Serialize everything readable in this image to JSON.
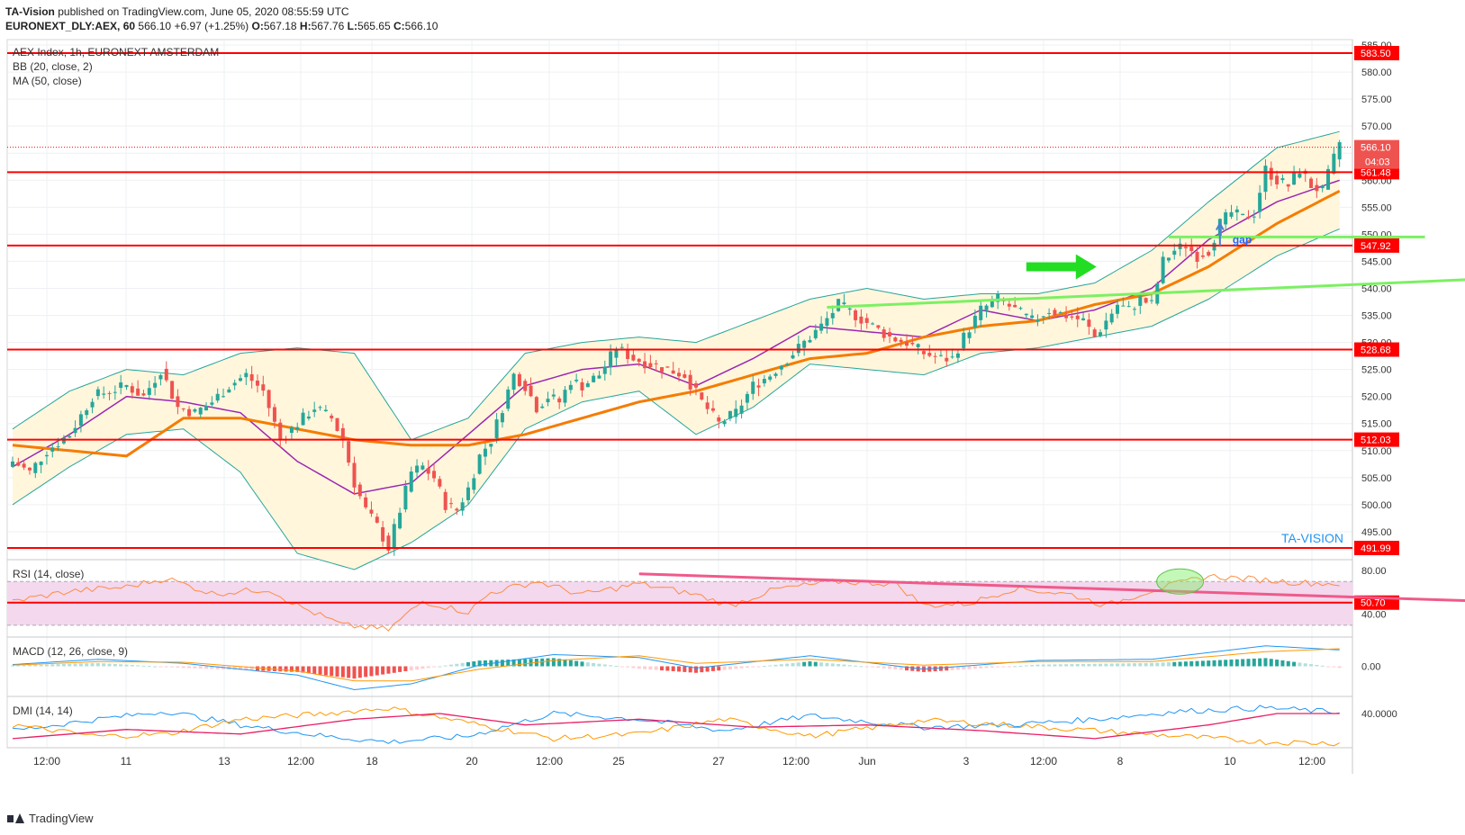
{
  "header": {
    "author": "TA-Vision",
    "published": "published on TradingView.com, June 05, 2020 08:55:59 UTC",
    "symbol": "EURONEXT_DLY:AEX, 60",
    "last": "566.10",
    "change": "+6.97 (+1.25%)",
    "ohlc": {
      "o_label": "O:",
      "o": "567.18",
      "h_label": "H:",
      "h": "567.76",
      "l_label": "L:",
      "l": "565.65",
      "c_label": "C:",
      "c": "566.10"
    }
  },
  "legend": {
    "title": "AEX Index, 1h, EURONEXT AMSTERDAM",
    "bb": "BB (20, close, 2)",
    "ma": "MA (50, close)"
  },
  "watermark": "TA-VISION",
  "annotations": {
    "gap": "gap"
  },
  "footer": {
    "brand": "TradingView"
  },
  "colors": {
    "up": "#26a69a",
    "down": "#ef5350",
    "resistance": "#ff0000",
    "trend": "#7cf062",
    "ma": "#f57c00",
    "bb_mid": "#9c27b0",
    "bb_band": "#26a69a",
    "bb_fill": "#fff6dc",
    "rsi": "#ff8c42",
    "rsi_band": "#f3d8ee",
    "rsi_trend": "#ef5a8a",
    "macd": "#2196f3",
    "signal": "#ff9800",
    "dmi_plus": "#2196f3",
    "dmi_minus": "#ff9800",
    "adx": "#e91e63",
    "watermark": "#2196f3"
  },
  "chart_data": [
    {
      "type": "candlestick",
      "title": "AEX Index, 1h, EURONEXT AMSTERDAM",
      "ylim": [
        490,
        586
      ],
      "y_ticks": [
        495,
        500,
        505,
        510,
        515,
        520,
        525,
        530,
        535,
        540,
        545,
        550,
        555,
        560,
        565,
        570,
        575,
        580,
        585
      ],
      "x_ticks": [
        "12:00",
        "11",
        "13",
        "12:00",
        "18",
        "20",
        "12:00",
        "25",
        "27",
        "12:00",
        "Jun",
        "3",
        "12:00",
        "8",
        "10",
        "12:00"
      ],
      "horizontal_levels": [
        583.5,
        561.48,
        547.92,
        528.68,
        512.03,
        491.99
      ],
      "last_price": 566.1,
      "countdown": "04:03",
      "close_anchors": [
        [
          0,
          508
        ],
        [
          3,
          506
        ],
        [
          6,
          510
        ],
        [
          10,
          513
        ],
        [
          14,
          520
        ],
        [
          17,
          521
        ],
        [
          20,
          522
        ],
        [
          23,
          520
        ],
        [
          26,
          525
        ],
        [
          29,
          518
        ],
        [
          32,
          517
        ],
        [
          35,
          519
        ],
        [
          38,
          522
        ],
        [
          41,
          524
        ],
        [
          44,
          521
        ],
        [
          47,
          512
        ],
        [
          50,
          515
        ],
        [
          53,
          518
        ],
        [
          56,
          516
        ],
        [
          58,
          512
        ],
        [
          60,
          504
        ],
        [
          62,
          499
        ],
        [
          64,
          496
        ],
        [
          66,
          492
        ],
        [
          68,
          499
        ],
        [
          70,
          506
        ],
        [
          72,
          507
        ],
        [
          74,
          505
        ],
        [
          76,
          500
        ],
        [
          78,
          499
        ],
        [
          80,
          503
        ],
        [
          82,
          509
        ],
        [
          84,
          512
        ],
        [
          86,
          518
        ],
        [
          88,
          524
        ],
        [
          90,
          522
        ],
        [
          92,
          518
        ],
        [
          94,
          520
        ],
        [
          96,
          519
        ],
        [
          98,
          523
        ],
        [
          100,
          522
        ],
        [
          103,
          524
        ],
        [
          106,
          529
        ],
        [
          109,
          527
        ],
        [
          112,
          526
        ],
        [
          115,
          525
        ],
        [
          118,
          524
        ],
        [
          121,
          519
        ],
        [
          124,
          515
        ],
        [
          127,
          517
        ],
        [
          130,
          522
        ],
        [
          133,
          524
        ],
        [
          136,
          527
        ],
        [
          139,
          530
        ],
        [
          142,
          533
        ],
        [
          145,
          537
        ],
        [
          148,
          535
        ],
        [
          151,
          533
        ],
        [
          154,
          531
        ],
        [
          157,
          530
        ],
        [
          160,
          528
        ],
        [
          163,
          527
        ],
        [
          165,
          527
        ],
        [
          167,
          531
        ],
        [
          170,
          536
        ],
        [
          173,
          538
        ],
        [
          176,
          536
        ],
        [
          179,
          534
        ],
        [
          182,
          536
        ],
        [
          185,
          535
        ],
        [
          188,
          534
        ],
        [
          190,
          531
        ],
        [
          192,
          534
        ],
        [
          194,
          537
        ],
        [
          196,
          536
        ],
        [
          198,
          538
        ],
        [
          200,
          537
        ],
        [
          202,
          545
        ],
        [
          204,
          547
        ],
        [
          206,
          548
        ],
        [
          208,
          546
        ],
        [
          210,
          547
        ],
        [
          212,
          552
        ],
        [
          214,
          554
        ],
        [
          216,
          553
        ],
        [
          218,
          554
        ],
        [
          220,
          562
        ],
        [
          222,
          560
        ],
        [
          224,
          559
        ],
        [
          226,
          562
        ],
        [
          228,
          559
        ],
        [
          230,
          558
        ],
        [
          233,
          567
        ]
      ],
      "ma50_anchors": [
        [
          0,
          511
        ],
        [
          10,
          510
        ],
        [
          20,
          509
        ],
        [
          30,
          516
        ],
        [
          40,
          516
        ],
        [
          50,
          514
        ],
        [
          60,
          512
        ],
        [
          70,
          511
        ],
        [
          80,
          511
        ],
        [
          90,
          513
        ],
        [
          100,
          516
        ],
        [
          110,
          519
        ],
        [
          120,
          521
        ],
        [
          130,
          524
        ],
        [
          140,
          527
        ],
        [
          150,
          528
        ],
        [
          160,
          531
        ],
        [
          170,
          533
        ],
        [
          180,
          534
        ],
        [
          190,
          537
        ],
        [
          200,
          539
        ],
        [
          210,
          544
        ],
        [
          222,
          552
        ],
        [
          233,
          558
        ]
      ],
      "bb_mid_anchors": [
        [
          0,
          507
        ],
        [
          10,
          513
        ],
        [
          20,
          520
        ],
        [
          30,
          519
        ],
        [
          40,
          517
        ],
        [
          50,
          508
        ],
        [
          60,
          502
        ],
        [
          70,
          504
        ],
        [
          80,
          513
        ],
        [
          90,
          522
        ],
        [
          100,
          525
        ],
        [
          110,
          526
        ],
        [
          120,
          522
        ],
        [
          130,
          527
        ],
        [
          140,
          533
        ],
        [
          150,
          532
        ],
        [
          160,
          531
        ],
        [
          170,
          536
        ],
        [
          180,
          534
        ],
        [
          190,
          536
        ],
        [
          200,
          540
        ],
        [
          210,
          549
        ],
        [
          222,
          556
        ],
        [
          233,
          560
        ]
      ],
      "bb_upper_anchors": [
        [
          0,
          514
        ],
        [
          10,
          521
        ],
        [
          20,
          525
        ],
        [
          30,
          524
        ],
        [
          40,
          528
        ],
        [
          50,
          529
        ],
        [
          60,
          528
        ],
        [
          70,
          512
        ],
        [
          80,
          516
        ],
        [
          90,
          528
        ],
        [
          100,
          530
        ],
        [
          110,
          531
        ],
        [
          120,
          530
        ],
        [
          130,
          534
        ],
        [
          140,
          538
        ],
        [
          150,
          540
        ],
        [
          160,
          538
        ],
        [
          170,
          539
        ],
        [
          180,
          539
        ],
        [
          190,
          541
        ],
        [
          200,
          547
        ],
        [
          210,
          556
        ],
        [
          222,
          566
        ],
        [
          233,
          569
        ]
      ],
      "bb_lower_anchors": [
        [
          0,
          500
        ],
        [
          10,
          507
        ],
        [
          20,
          513
        ],
        [
          30,
          514
        ],
        [
          40,
          506
        ],
        [
          50,
          491
        ],
        [
          60,
          488
        ],
        [
          70,
          493
        ],
        [
          80,
          500
        ],
        [
          90,
          514
        ],
        [
          100,
          519
        ],
        [
          110,
          521
        ],
        [
          120,
          513
        ],
        [
          130,
          518
        ],
        [
          140,
          526
        ],
        [
          150,
          525
        ],
        [
          160,
          524
        ],
        [
          170,
          528
        ],
        [
          180,
          529
        ],
        [
          190,
          531
        ],
        [
          200,
          533
        ],
        [
          210,
          538
        ],
        [
          222,
          546
        ],
        [
          233,
          551
        ]
      ],
      "trendlines": [
        {
          "from": [
            143,
            536.5
          ],
          "to": [
            275,
            542.5
          ]
        },
        {
          "from": [
            203,
            549.5
          ],
          "to": [
            248,
            549.5
          ]
        },
        {
          "from": [
            0,
            512.03
          ],
          "to": [
            290,
            512.03
          ]
        }
      ]
    },
    {
      "type": "line",
      "title": "RSI (14, close)",
      "ylim": [
        20,
        90
      ],
      "y_ticks": [
        40,
        80
      ],
      "band": [
        30,
        70
      ],
      "level": 50.7,
      "anchors": [
        [
          0,
          52
        ],
        [
          10,
          61
        ],
        [
          20,
          65
        ],
        [
          27,
          73
        ],
        [
          35,
          59
        ],
        [
          45,
          63
        ],
        [
          50,
          48
        ],
        [
          58,
          30
        ],
        [
          66,
          26
        ],
        [
          72,
          52
        ],
        [
          80,
          42
        ],
        [
          84,
          60
        ],
        [
          92,
          70
        ],
        [
          100,
          58
        ],
        [
          110,
          68
        ],
        [
          120,
          58
        ],
        [
          126,
          48
        ],
        [
          134,
          63
        ],
        [
          145,
          70
        ],
        [
          155,
          68
        ],
        [
          160,
          48
        ],
        [
          168,
          50
        ],
        [
          176,
          64
        ],
        [
          186,
          58
        ],
        [
          192,
          48
        ],
        [
          200,
          62
        ],
        [
          210,
          75
        ],
        [
          218,
          72
        ],
        [
          226,
          69
        ],
        [
          233,
          68
        ]
      ],
      "trendline": {
        "from": [
          110,
          77
        ],
        "to": [
          258,
          52
        ]
      }
    },
    {
      "type": "line",
      "title": "MACD (12, 26, close, 9)",
      "ylim": [
        -5,
        5
      ],
      "y_ticks": [
        0.0
      ],
      "macd_anchors": [
        [
          0,
          0.3
        ],
        [
          15,
          1.2
        ],
        [
          30,
          0.5
        ],
        [
          50,
          -1.5
        ],
        [
          60,
          -4
        ],
        [
          70,
          -3
        ],
        [
          82,
          0.2
        ],
        [
          95,
          2
        ],
        [
          110,
          1.5
        ],
        [
          120,
          -0.3
        ],
        [
          140,
          1.8
        ],
        [
          160,
          -0.5
        ],
        [
          180,
          1
        ],
        [
          200,
          1.2
        ],
        [
          220,
          3.5
        ],
        [
          233,
          2.8
        ]
      ],
      "signal_anchors": [
        [
          0,
          0.2
        ],
        [
          15,
          0.8
        ],
        [
          30,
          0.7
        ],
        [
          50,
          -0.8
        ],
        [
          60,
          -2.5
        ],
        [
          70,
          -2.5
        ],
        [
          82,
          -0.5
        ],
        [
          95,
          1
        ],
        [
          110,
          1.8
        ],
        [
          120,
          0.5
        ],
        [
          140,
          1.2
        ],
        [
          160,
          0.2
        ],
        [
          180,
          0.8
        ],
        [
          200,
          0.8
        ],
        [
          220,
          2.5
        ],
        [
          233,
          3.0
        ]
      ]
    },
    {
      "type": "line",
      "title": "DMI (14, 14)",
      "ylim": [
        10,
        55
      ],
      "y_ticks": [
        40.0
      ],
      "plus_di_anchors": [
        [
          0,
          25
        ],
        [
          15,
          35
        ],
        [
          27,
          42
        ],
        [
          40,
          30
        ],
        [
          55,
          20
        ],
        [
          66,
          15
        ],
        [
          80,
          20
        ],
        [
          95,
          40
        ],
        [
          110,
          35
        ],
        [
          125,
          25
        ],
        [
          140,
          38
        ],
        [
          160,
          28
        ],
        [
          175,
          30
        ],
        [
          190,
          35
        ],
        [
          205,
          42
        ],
        [
          220,
          45
        ],
        [
          233,
          41
        ]
      ],
      "minus_di_anchors": [
        [
          0,
          30
        ],
        [
          15,
          20
        ],
        [
          27,
          22
        ],
        [
          40,
          35
        ],
        [
          55,
          40
        ],
        [
          66,
          45
        ],
        [
          80,
          32
        ],
        [
          95,
          18
        ],
        [
          110,
          22
        ],
        [
          125,
          35
        ],
        [
          140,
          20
        ],
        [
          160,
          34
        ],
        [
          175,
          30
        ],
        [
          190,
          25
        ],
        [
          205,
          20
        ],
        [
          220,
          15
        ],
        [
          233,
          14
        ]
      ],
      "adx_anchors": [
        [
          0,
          18
        ],
        [
          20,
          26
        ],
        [
          40,
          22
        ],
        [
          60,
          35
        ],
        [
          75,
          40
        ],
        [
          90,
          30
        ],
        [
          110,
          35
        ],
        [
          130,
          28
        ],
        [
          150,
          30
        ],
        [
          170,
          25
        ],
        [
          190,
          18
        ],
        [
          210,
          30
        ],
        [
          222,
          40
        ],
        [
          233,
          40
        ]
      ]
    }
  ]
}
